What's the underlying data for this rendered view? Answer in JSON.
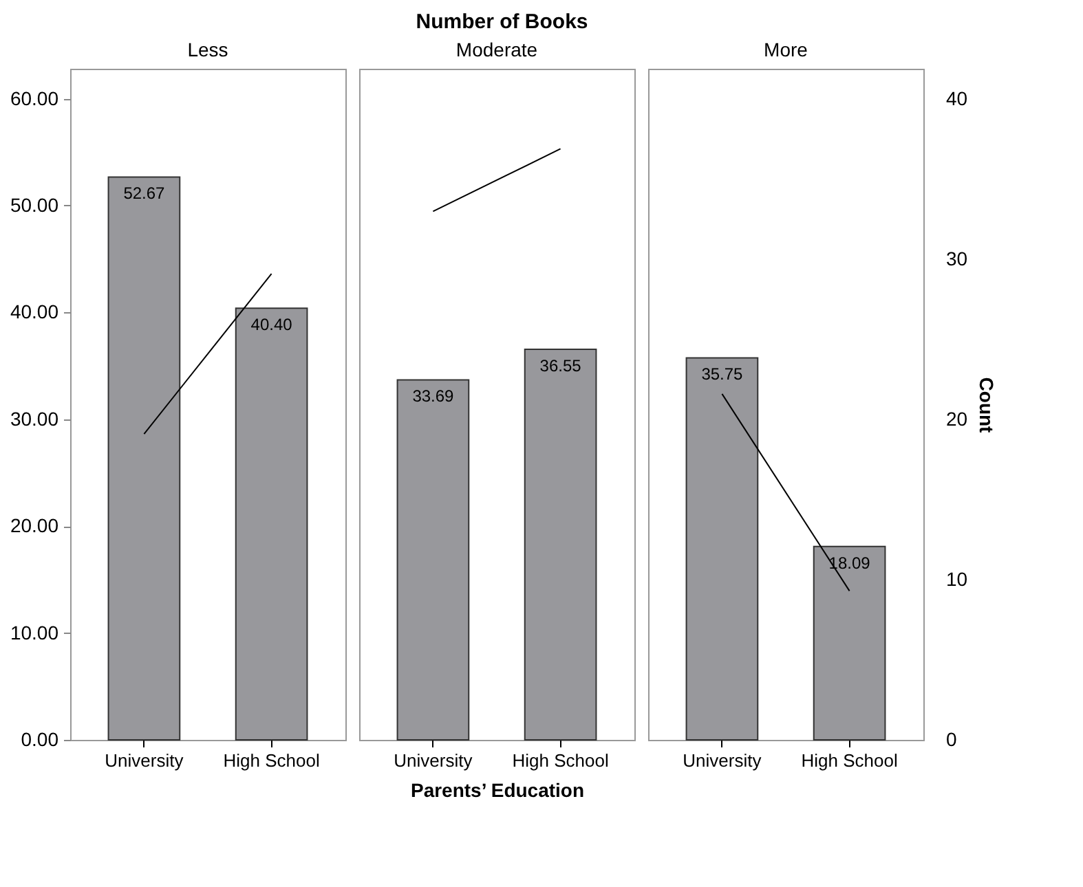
{
  "chart_data": [
    {
      "type": "bar",
      "title": "Less",
      "annotations": [
        "Number of Books"
      ],
      "categories": [
        "University",
        "High School"
      ],
      "ylim": [
        0,
        62.8
      ],
      "yticks": [
        {
          "value": 0,
          "label": "0.00"
        },
        {
          "value": 10,
          "label": "10.00"
        },
        {
          "value": 20,
          "label": "20.00"
        },
        {
          "value": 30,
          "label": "30.00"
        },
        {
          "value": 40,
          "label": "40.00"
        },
        {
          "value": 50,
          "label": "50.00"
        },
        {
          "value": 60,
          "label": "60.00"
        }
      ],
      "y2lim": [
        0,
        41.9
      ],
      "series": [
        {
          "type": "bar",
          "color": "#98989c",
          "values": [
            52.67,
            40.4
          ],
          "value_labels": [
            "52.67",
            "40.40"
          ]
        },
        {
          "type": "line",
          "axis": "y2",
          "color": "#000000",
          "values": [
            19.1,
            29.1
          ]
        }
      ]
    },
    {
      "type": "bar",
      "title": "Moderate",
      "xlabel": "Parents’ Education",
      "categories": [
        "University",
        "High School"
      ],
      "ylim": [
        0,
        62.8
      ],
      "y2lim": [
        0,
        41.9
      ],
      "tick_labels": "x",
      "series": [
        {
          "type": "bar",
          "color": "#98989c",
          "values": [
            33.69,
            36.55
          ],
          "value_labels": [
            "33.69",
            "36.55"
          ]
        },
        {
          "type": "line",
          "axis": "y2",
          "color": "#000000",
          "values": [
            33.0,
            36.9
          ]
        }
      ]
    },
    {
      "type": "bar",
      "title": "More",
      "y2label": "Count",
      "categories": [
        "University",
        "High School"
      ],
      "ylim": [
        0,
        62.8
      ],
      "y2lim": [
        0,
        41.9
      ],
      "y2ticks": [
        0,
        10,
        20,
        30,
        40
      ],
      "series": [
        {
          "type": "bar",
          "color": "#98989c",
          "values": [
            35.75,
            18.09
          ],
          "value_labels": [
            "35.75",
            "18.09"
          ]
        },
        {
          "type": "line",
          "axis": "y2",
          "color": "#000000",
          "values": [
            21.6,
            9.3
          ]
        }
      ]
    }
  ]
}
